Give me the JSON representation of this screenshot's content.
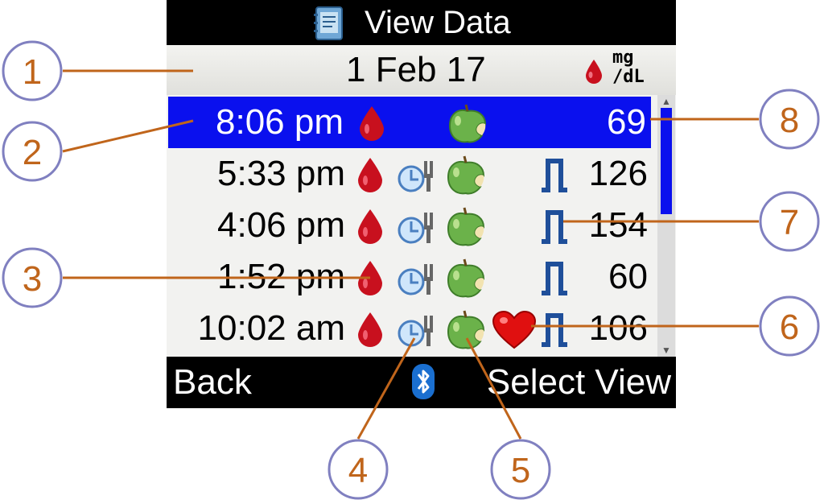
{
  "header": {
    "title": "View Data",
    "icon": "logbook-icon"
  },
  "date_bar": {
    "date": "1 Feb 17",
    "unit_top": "mg",
    "unit_bottom": "/dL"
  },
  "readings": [
    {
      "time": "8:06 pm",
      "value": "69",
      "selected": true,
      "clock": false,
      "apple": true,
      "heart": false,
      "exercise": false
    },
    {
      "time": "5:33 pm",
      "value": "126",
      "selected": false,
      "clock": true,
      "apple": true,
      "heart": false,
      "exercise": true
    },
    {
      "time": "4:06 pm",
      "value": "154",
      "selected": false,
      "clock": true,
      "apple": true,
      "heart": false,
      "exercise": true
    },
    {
      "time": "1:52 pm",
      "value": "60",
      "selected": false,
      "clock": true,
      "apple": true,
      "heart": false,
      "exercise": true
    },
    {
      "time": "10:02 am",
      "value": "106",
      "selected": false,
      "clock": true,
      "apple": true,
      "heart": true,
      "exercise": true
    }
  ],
  "scrollbar": {
    "position_fraction": 0.0,
    "visible_fraction": 0.45
  },
  "softkeys": {
    "left": "Back",
    "right": "Select View",
    "center_icon": "bluetooth-icon"
  },
  "callouts": [
    "1",
    "2",
    "3",
    "4",
    "5",
    "6",
    "7",
    "8"
  ],
  "colors": {
    "highlight": "#0a10ee",
    "callout": "#c0651b",
    "callout_circle": "#8080c0"
  }
}
